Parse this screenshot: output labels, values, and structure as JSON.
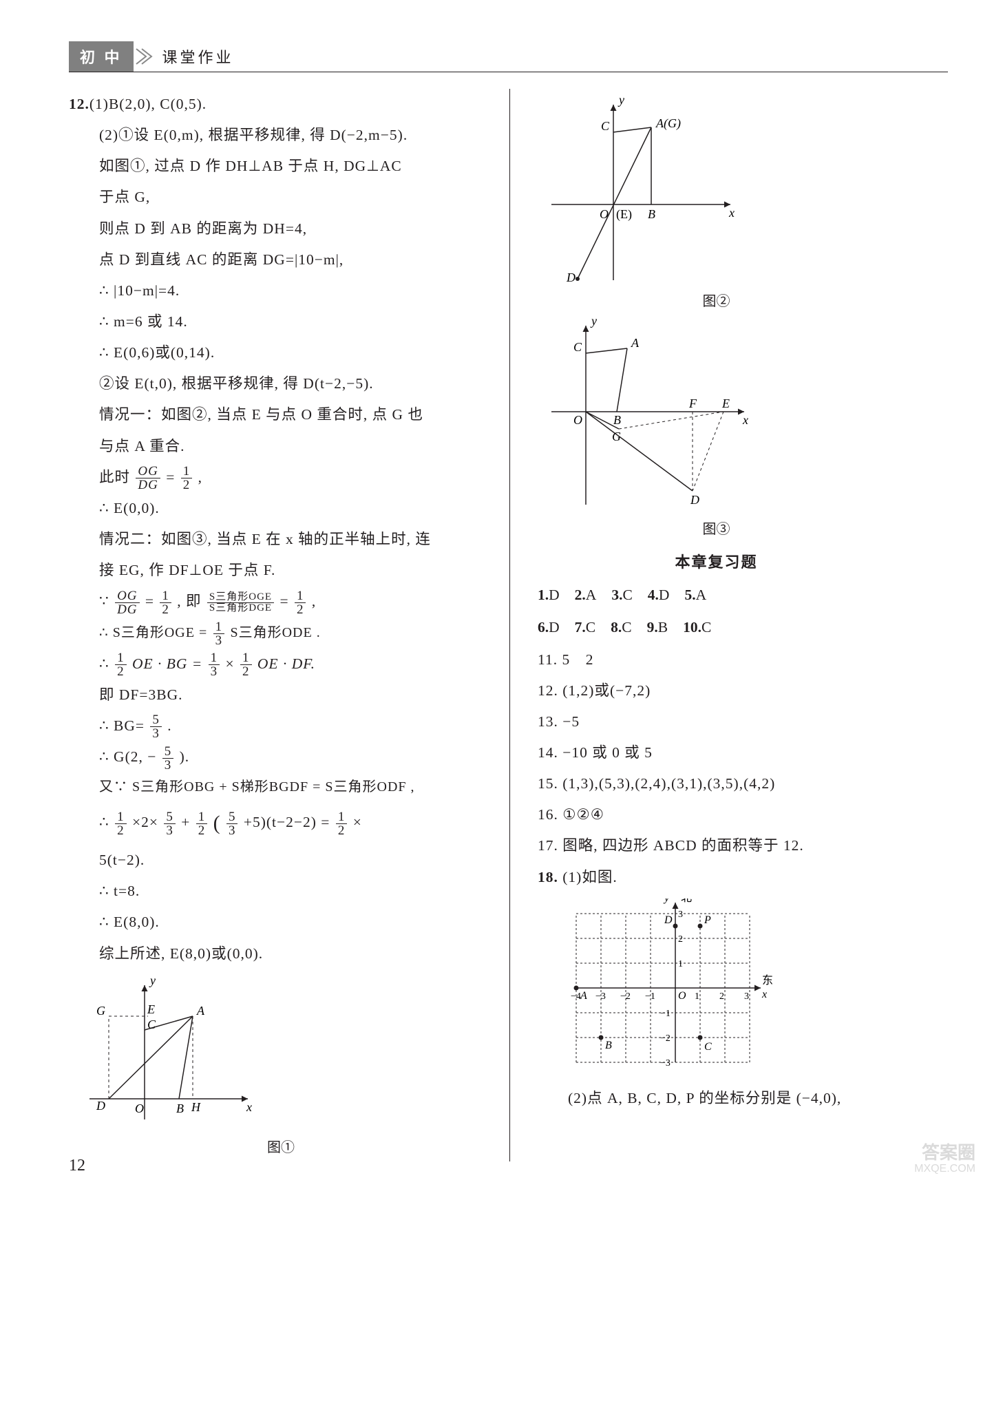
{
  "header": {
    "badge": "初 中",
    "title": "课堂作业"
  },
  "page_number": "12",
  "watermark_top": "答案圈",
  "watermark_bottom": "MXQE.COM",
  "left": {
    "q12_num": "12.",
    "l1": "(1)B(2,0), C(0,5).",
    "l2": "(2)①设 E(0,m), 根据平移规律, 得 D(−2,m−5).",
    "l3": "如图①, 过点 D 作 DH⊥AB 于点 H, DG⊥AC",
    "l4": "于点 G,",
    "l5": "则点 D 到 AB 的距离为 DH=4,",
    "l6": "点 D 到直线 AC 的距离 DG=|10−m|,",
    "l7": "∴ |10−m|=4.",
    "l8": "∴ m=6 或 14.",
    "l9": "∴ E(0,6)或(0,14).",
    "l10": "②设 E(t,0), 根据平移规律, 得 D(t−2,−5).",
    "l11": "情况一：如图②, 当点 E 与点 O 重合时, 点 G 也",
    "l12": "与点 A 重合.",
    "l13a": "此时",
    "l13_frac_num": "OG",
    "l13_frac_den": "DG",
    "l13b": "=",
    "l13_frac2_num": "1",
    "l13_frac2_den": "2",
    "l13c": ",",
    "l14": "∴ E(0,0).",
    "l15": "情况二：如图③, 当点 E 在 x 轴的正半轴上时, 连",
    "l16": "接 EG, 作 DF⊥OE 于点 F.",
    "l17a": "∵",
    "l17_f1n": "OG",
    "l17_f1d": "DG",
    "l17_eq1": "=",
    "l17_f2n": "1",
    "l17_f2d": "2",
    "l17_mid": ", 即",
    "l17_f3n": "S三角形OGE",
    "l17_f3d": "S三角形DGE",
    "l17_eq2": "=",
    "l17_f4n": "1",
    "l17_f4d": "2",
    "l17_end": ",",
    "l18a": "∴ S三角形OGE =",
    "l18_fn": "1",
    "l18_fd": "3",
    "l18b": "S三角形ODE .",
    "l19a": "∴",
    "l19_f1n": "1",
    "l19_f1d": "2",
    "l19_mid1": "OE · BG =",
    "l19_f2n": "1",
    "l19_f2d": "3",
    "l19_mid2": "×",
    "l19_f3n": "1",
    "l19_f3d": "2",
    "l19_end": "OE · DF.",
    "l20": "即 DF=3BG.",
    "l21a": "∴ BG=",
    "l21_fn": "5",
    "l21_fd": "3",
    "l21b": ".",
    "l22a": "∴ G(2, −",
    "l22_fn": "5",
    "l22_fd": "3",
    "l22b": ").",
    "l23": "又∵ S三角形OBG + S梯形BGDF = S三角形ODF ,",
    "l24a": "∴",
    "l24_f1n": "1",
    "l24_f1d": "2",
    "l24_mid1": "×2×",
    "l24_f2n": "5",
    "l24_f2d": "3",
    "l24_mid2": "+",
    "l24_f3n": "1",
    "l24_f3d": "2",
    "l24_mid3": "(",
    "l24_f4n": "5",
    "l24_f4d": "3",
    "l24_mid4": "+5)(t−2−2) =",
    "l24_f5n": "1",
    "l24_f5d": "2",
    "l24_end": "×",
    "l25": "5(t−2).",
    "l26": "∴ t=8.",
    "l27": "∴ E(8,0).",
    "l28": "综上所述, E(8,0)或(0,0).",
    "fig1_caption": "图①",
    "fig1": {
      "labels": {
        "y": "y",
        "x": "x",
        "O": "O",
        "G": "G",
        "E": "E",
        "C": "C",
        "A": "A",
        "D": "D",
        "H": "H",
        "B": "B"
      },
      "stroke": "#231f20",
      "dash": "4,4"
    }
  },
  "right": {
    "fig2_caption": "图②",
    "fig2": {
      "labels": {
        "y": "y",
        "x": "x",
        "C": "C",
        "A": "A(G)",
        "O": "O",
        "E": "(E)",
        "B": "B",
        "D": "D"
      },
      "stroke": "#231f20"
    },
    "fig3_caption": "图③",
    "fig3": {
      "labels": {
        "y": "y",
        "x": "x",
        "C": "C",
        "A": "A",
        "O": "O",
        "B": "B",
        "G": "G",
        "F": "F",
        "E": "E",
        "D": "D"
      },
      "stroke": "#231f20",
      "dash": "4,4"
    },
    "section_title": "本章复习题",
    "answers_row1": [
      {
        "n": "1.",
        "v": "D"
      },
      {
        "n": "2.",
        "v": "A"
      },
      {
        "n": "3.",
        "v": "C"
      },
      {
        "n": "4.",
        "v": "D"
      },
      {
        "n": "5.",
        "v": "A"
      }
    ],
    "answers_row2": [
      {
        "n": "6.",
        "v": "D"
      },
      {
        "n": "7.",
        "v": "C"
      },
      {
        "n": "8.",
        "v": "C"
      },
      {
        "n": "9.",
        "v": "B"
      },
      {
        "n": "10.",
        "v": "C"
      }
    ],
    "a11": "11. 5　2",
    "a12": "12. (1,2)或(−7,2)",
    "a13": "13. −5",
    "a14": "14. −10 或 0 或 5",
    "a15": "15. (1,3),(5,3),(2,4),(3,1),(3,5),(4,2)",
    "a16": "16. ①②④",
    "a17": "17. 图略, 四边形 ABCD 的面积等于 12.",
    "a18_1": "18. (1)如图.",
    "a18_2": "(2)点 A, B, C, D, P 的坐标分别是 (−4,0),",
    "grid": {
      "xmin": -4,
      "xmax": 3,
      "ymin": -3,
      "ymax": 3,
      "stroke": "#231f20",
      "dash": "3,3",
      "xticks": [
        "−4",
        "−3",
        "−2",
        "−1",
        "",
        "1",
        "2",
        "3"
      ],
      "yticks_pos": [
        "1",
        "2",
        "3"
      ],
      "yticks_neg": [
        "−1",
        "−2",
        "−3"
      ],
      "labels": {
        "north": "北",
        "east": "东",
        "y": "y",
        "x": "x",
        "O": "O",
        "A": "A",
        "B": "B",
        "C": "C",
        "D": "D",
        "P": "P"
      },
      "points": {
        "A": [
          -4,
          0
        ],
        "B": [
          -3,
          -2
        ],
        "C": [
          1,
          -2
        ],
        "D": [
          0,
          2.5
        ],
        "P": [
          1,
          2.5
        ]
      }
    }
  }
}
